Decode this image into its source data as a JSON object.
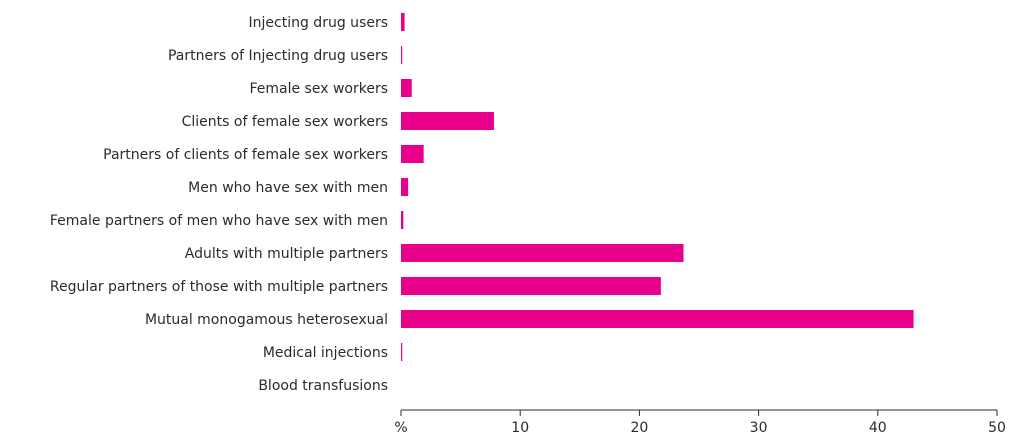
{
  "chart_data": {
    "type": "bar",
    "orientation": "horizontal",
    "categories": [
      "Injecting drug users",
      "Partners of Injecting drug users",
      "Female sex workers",
      "Clients of female sex workers",
      "Partners of clients of female sex workers",
      "Men who have sex with men",
      "Female partners of men who have sex with men",
      "Adults with multiple partners",
      "Regular partners of those with multiple partners",
      "Mutual monogamous heterosexual",
      "Medical injections",
      "Blood transfusions"
    ],
    "values": [
      0.3,
      0.1,
      0.9,
      7.8,
      1.9,
      0.6,
      0.2,
      23.7,
      21.8,
      43.0,
      0.1,
      0.0
    ],
    "xlabel": "%",
    "ylabel": "",
    "xlim": [
      0,
      50
    ],
    "xticks": [
      0,
      10,
      20,
      30,
      40,
      50
    ],
    "xtick_labels": [
      "%",
      "10",
      "20",
      "30",
      "40",
      "50"
    ],
    "bar_color": "#e8008a",
    "grid": false,
    "legend": "none"
  }
}
